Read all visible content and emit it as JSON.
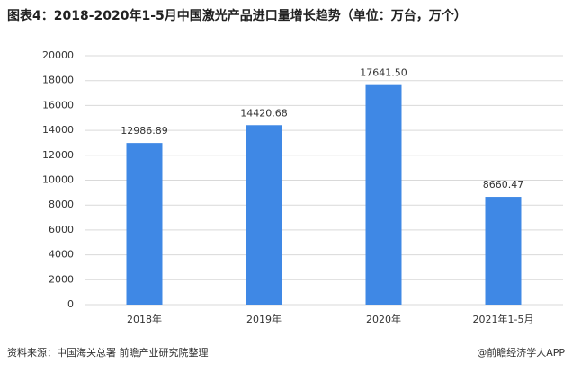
{
  "chart_data": {
    "type": "bar",
    "title": "图表4：2018-2020年1-5月中国激光产品进口量增长趋势（单位：万台，万个）",
    "categories": [
      "2018年",
      "2019年",
      "2020年",
      "2021年1-5月"
    ],
    "values": [
      12986.89,
      14420.68,
      17641.5,
      8660.47
    ],
    "value_labels": [
      "12986.89",
      "14420.68",
      "17641.50",
      "8660.47"
    ],
    "color": "#3f88e5",
    "ylim": [
      0,
      20000
    ],
    "yticks": [
      0,
      2000,
      4000,
      6000,
      8000,
      10000,
      12000,
      14000,
      16000,
      18000,
      20000
    ],
    "grid": true,
    "source": "资料来源：中国海关总署 前瞻产业研究院整理",
    "credit": "@前瞻经济学人APP"
  }
}
